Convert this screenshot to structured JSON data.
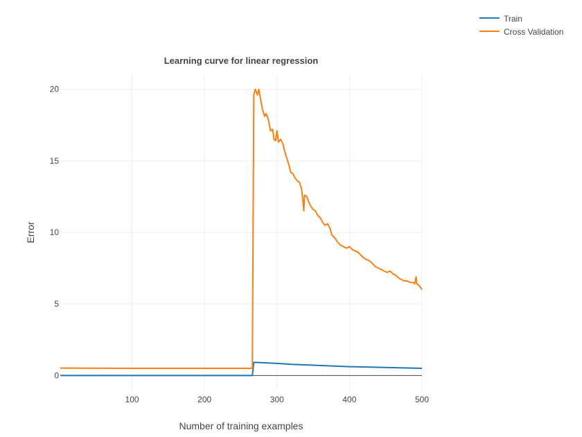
{
  "chart_data": {
    "type": "line",
    "title": "Learning curve for linear regression",
    "xlabel": "Number of training examples",
    "ylabel": "Error",
    "xlim": [
      1,
      500
    ],
    "ylim": [
      -1,
      21
    ],
    "x_ticks": [
      100,
      200,
      300,
      400,
      500
    ],
    "y_ticks": [
      0,
      5,
      10,
      15,
      20
    ],
    "grid": true,
    "legend_position": "top-right",
    "series": [
      {
        "name": "Train",
        "color": "#1f77b4",
        "points": [
          [
            1,
            0
          ],
          [
            100,
            0
          ],
          [
            200,
            0
          ],
          [
            266,
            0
          ],
          [
            268,
            0.92
          ],
          [
            300,
            0.85
          ],
          [
            320,
            0.78
          ],
          [
            350,
            0.72
          ],
          [
            400,
            0.62
          ],
          [
            450,
            0.56
          ],
          [
            500,
            0.5
          ]
        ]
      },
      {
        "name": "Cross Validation",
        "color": "#ff7f0e",
        "points": [
          [
            1,
            0.52
          ],
          [
            100,
            0.5
          ],
          [
            200,
            0.5
          ],
          [
            266,
            0.5
          ],
          [
            268,
            19.6
          ],
          [
            270,
            20.0
          ],
          [
            273,
            19.6
          ],
          [
            275,
            20.0
          ],
          [
            277,
            19.4
          ],
          [
            280,
            18.6
          ],
          [
            283,
            18.1
          ],
          [
            285,
            18.3
          ],
          [
            288,
            17.9
          ],
          [
            291,
            17.1
          ],
          [
            294,
            17.2
          ],
          [
            296,
            16.5
          ],
          [
            298,
            16.4
          ],
          [
            300,
            17.1
          ],
          [
            302,
            16.3
          ],
          [
            305,
            16.5
          ],
          [
            308,
            16.2
          ],
          [
            311,
            15.6
          ],
          [
            314,
            15.1
          ],
          [
            316,
            14.8
          ],
          [
            319,
            14.2
          ],
          [
            322,
            14.1
          ],
          [
            325,
            13.8
          ],
          [
            328,
            13.6
          ],
          [
            331,
            13.5
          ],
          [
            334,
            13.0
          ],
          [
            336,
            12.1
          ],
          [
            337,
            11.5
          ],
          [
            338,
            12.6
          ],
          [
            341,
            12.5
          ],
          [
            344,
            12.1
          ],
          [
            347,
            11.8
          ],
          [
            350,
            11.6
          ],
          [
            353,
            11.5
          ],
          [
            356,
            11.2
          ],
          [
            360,
            11.0
          ],
          [
            363,
            10.7
          ],
          [
            366,
            10.5
          ],
          [
            370,
            10.6
          ],
          [
            373,
            10.3
          ],
          [
            376,
            9.8
          ],
          [
            380,
            9.6
          ],
          [
            384,
            9.3
          ],
          [
            388,
            9.1
          ],
          [
            392,
            9.0
          ],
          [
            396,
            8.9
          ],
          [
            400,
            9.0
          ],
          [
            404,
            8.8
          ],
          [
            408,
            8.7
          ],
          [
            412,
            8.6
          ],
          [
            416,
            8.4
          ],
          [
            420,
            8.2
          ],
          [
            424,
            8.1
          ],
          [
            428,
            8.0
          ],
          [
            432,
            7.8
          ],
          [
            436,
            7.6
          ],
          [
            440,
            7.5
          ],
          [
            444,
            7.4
          ],
          [
            448,
            7.3
          ],
          [
            452,
            7.2
          ],
          [
            456,
            7.3
          ],
          [
            460,
            7.1
          ],
          [
            464,
            7.0
          ],
          [
            468,
            6.8
          ],
          [
            472,
            6.7
          ],
          [
            476,
            6.6
          ],
          [
            480,
            6.6
          ],
          [
            484,
            6.5
          ],
          [
            488,
            6.5
          ],
          [
            490,
            6.4
          ],
          [
            492,
            6.9
          ],
          [
            493,
            6.4
          ],
          [
            496,
            6.3
          ],
          [
            500,
            6.0
          ]
        ]
      }
    ]
  }
}
